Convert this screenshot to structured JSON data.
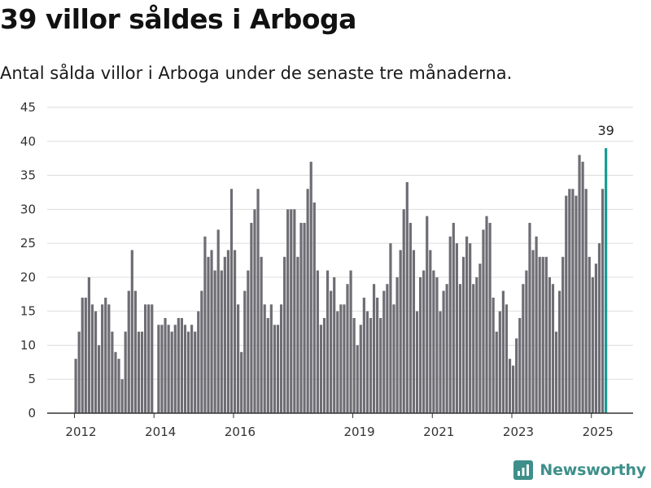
{
  "header": {
    "title": "39 villor såldes i Arboga",
    "subtitle": "Antal sålda villor i Arboga under de senaste tre månaderna."
  },
  "brand": {
    "name": "Newsworthy",
    "icon": "newsworthy-logo-icon",
    "color": "#3e8f8a"
  },
  "colors": {
    "bar": "#6e6d74",
    "highlight": "#1a9a94",
    "grid": "#dddddd",
    "axis": "#333333"
  },
  "chart_data": {
    "type": "bar",
    "title": "39 villor såldes i Arboga",
    "subtitle": "Antal sålda villor i Arboga under de senaste tre månaderna.",
    "xlabel": "",
    "ylabel": "",
    "ylim": [
      0,
      45
    ],
    "yticks": [
      0,
      5,
      10,
      15,
      20,
      25,
      30,
      35,
      40,
      45
    ],
    "xtick_labels": [
      "2012",
      "2014",
      "2016",
      "2019",
      "2021",
      "2023",
      "2025"
    ],
    "grid": true,
    "legend": "none",
    "x_start": "2012-01",
    "frequency": "monthly",
    "values": [
      8,
      12,
      17,
      17,
      20,
      16,
      15,
      10,
      16,
      17,
      16,
      12,
      9,
      8,
      5,
      12,
      18,
      24,
      18,
      12,
      12,
      16,
      16,
      16,
      null,
      13,
      13,
      14,
      13,
      12,
      13,
      14,
      14,
      13,
      12,
      13,
      12,
      15,
      18,
      26,
      23,
      24,
      21,
      27,
      21,
      23,
      24,
      33,
      24,
      16,
      9,
      18,
      21,
      28,
      30,
      33,
      23,
      16,
      14,
      16,
      13,
      13,
      16,
      23,
      30,
      30,
      30,
      23,
      28,
      28,
      33,
      37,
      31,
      21,
      13,
      14,
      21,
      18,
      20,
      15,
      16,
      16,
      19,
      21,
      14,
      10,
      13,
      17,
      15,
      14,
      19,
      17,
      14,
      18,
      19,
      25,
      16,
      20,
      24,
      30,
      34,
      28,
      24,
      15,
      20,
      21,
      29,
      24,
      21,
      20,
      15,
      18,
      19,
      26,
      28,
      25,
      19,
      23,
      26,
      25,
      19,
      20,
      22,
      27,
      29,
      28,
      17,
      12,
      15,
      18,
      16,
      8,
      7,
      11,
      14,
      19,
      21,
      28,
      24,
      26,
      23,
      23,
      23,
      20,
      19,
      12,
      18,
      23,
      32,
      33,
      33,
      32,
      38,
      37,
      33,
      23,
      20,
      22,
      25,
      33,
      39
    ],
    "highlight_index": 160,
    "annotations": [
      {
        "label": "39"
      }
    ]
  }
}
